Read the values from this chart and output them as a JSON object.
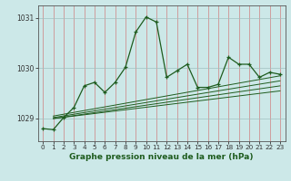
{
  "title": "Graphe pression niveau de la mer (hPa)",
  "bg_color": "#cce8e8",
  "grid_color": "#b0c8c8",
  "line_color": "#1e5c1e",
  "xlim": [
    -0.5,
    23.5
  ],
  "ylim": [
    1028.55,
    1031.25
  ],
  "yticks": [
    1029,
    1030,
    1031
  ],
  "xticks": [
    0,
    1,
    2,
    3,
    4,
    5,
    6,
    7,
    8,
    9,
    10,
    11,
    12,
    13,
    14,
    15,
    16,
    17,
    18,
    19,
    20,
    21,
    22,
    23
  ],
  "main_series": [
    1028.8,
    1028.78,
    1029.02,
    1029.22,
    1029.65,
    1029.72,
    1029.52,
    1029.72,
    1030.02,
    1030.72,
    1031.02,
    1030.92,
    1029.82,
    1029.95,
    1030.08,
    1029.62,
    1029.62,
    1029.68,
    1030.22,
    1030.08,
    1030.08,
    1029.82,
    1029.92,
    1029.88
  ],
  "trend_lines": [
    {
      "x0": 1,
      "y0": 1029.0,
      "x1": 23,
      "y1": 1029.55
    },
    {
      "x0": 1,
      "y0": 1029.0,
      "x1": 23,
      "y1": 1029.65
    },
    {
      "x0": 1,
      "y0": 1029.02,
      "x1": 23,
      "y1": 1029.75
    },
    {
      "x0": 1,
      "y0": 1029.05,
      "x1": 23,
      "y1": 1029.85
    }
  ],
  "ylabel_fontsize": 5,
  "xlabel_fontsize": 6.5,
  "tick_fontsize": 5.2
}
